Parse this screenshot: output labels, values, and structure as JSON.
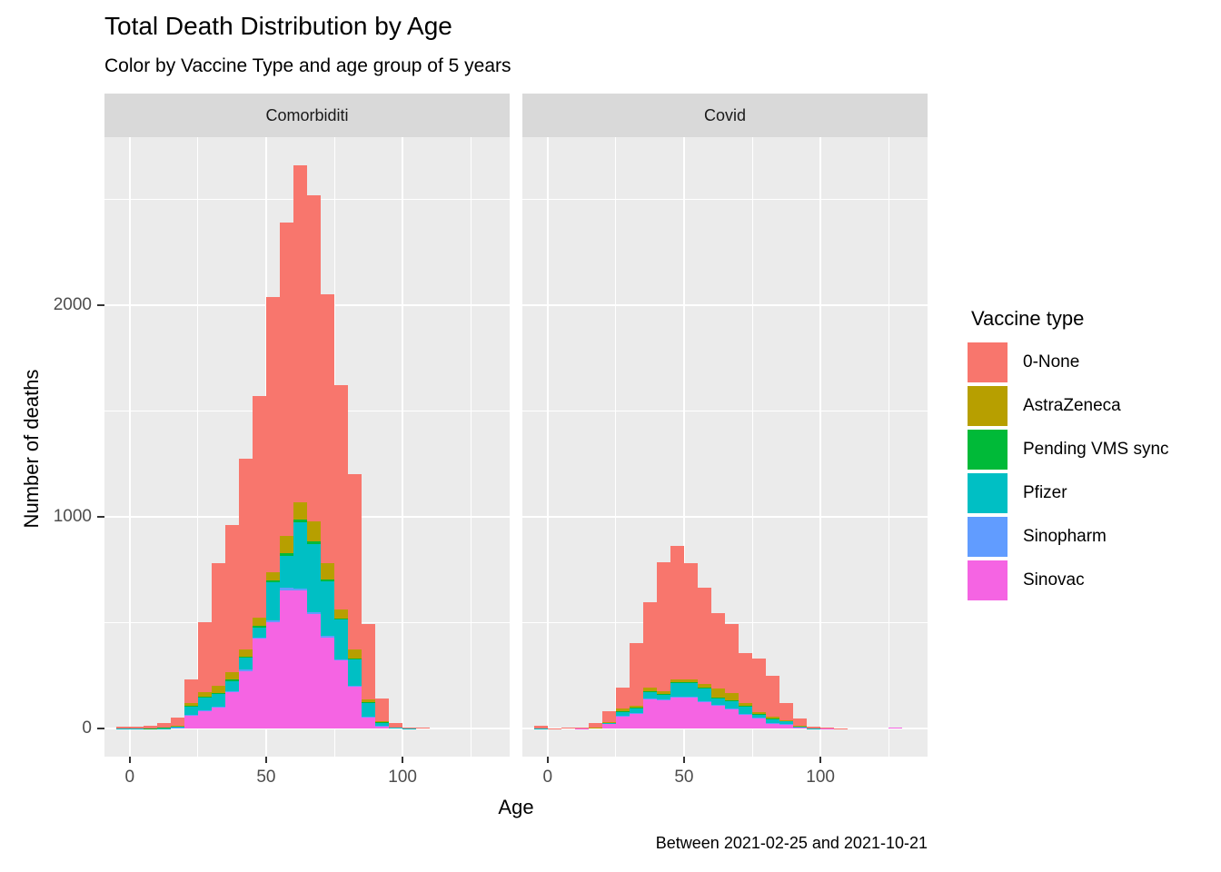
{
  "title": "Total Death Distribution by Age",
  "subtitle": "Color by Vaccine Type and age group of 5 years",
  "x_axis_title": "Age",
  "y_axis_title": "Number of deaths",
  "caption": "Between 2021-02-25 and 2021-10-21",
  "legend": {
    "title": "Vaccine type"
  },
  "chart_data": {
    "type": "bar",
    "stacked": true,
    "binwidth": 5,
    "title": "Total Death Distribution by Age",
    "subtitle": "Color by Vaccine Type and age group of 5 years",
    "xlabel": "Age",
    "ylabel": "Number of deaths",
    "legend_position": "right",
    "panel_background": "#EBEBEB",
    "strip_background": "#D9D9D9",
    "x_range": [
      -9.25,
      139.25
    ],
    "y_range": [
      -133,
      2793
    ],
    "x_ticks": [
      {
        "value": 0,
        "label": "0"
      },
      {
        "value": 50,
        "label": "50"
      },
      {
        "value": 100,
        "label": "100"
      }
    ],
    "x_minor": [
      25,
      75,
      125
    ],
    "y_ticks": [
      {
        "value": 0,
        "label": "0"
      },
      {
        "value": 1000,
        "label": "1000"
      },
      {
        "value": 2000,
        "label": "2000"
      }
    ],
    "y_minor": [
      500,
      1500,
      2500
    ],
    "series": [
      {
        "name": "0-None",
        "color": "#F8766D"
      },
      {
        "name": "AstraZeneca",
        "color": "#B79F00"
      },
      {
        "name": "Pending VMS sync",
        "color": "#00BA38"
      },
      {
        "name": "Pfizer",
        "color": "#00BFC4"
      },
      {
        "name": "Sinopharm",
        "color": "#619CFF"
      },
      {
        "name": "Sinovac",
        "color": "#F564E3"
      }
    ],
    "facets": [
      {
        "label": "Comorbiditi",
        "bin_starts": [
          -5,
          0,
          5,
          10,
          15,
          20,
          25,
          30,
          35,
          40,
          45,
          50,
          55,
          60,
          65,
          70,
          75,
          80,
          85,
          90,
          95,
          100,
          105
        ],
        "values": {
          "0-None": [
            7,
            6,
            11,
            21,
            40,
            112,
            330,
            580,
            694,
            900,
            1048,
            1300,
            1480,
            1590,
            1540,
            1270,
            1058,
            828,
            357,
            106,
            19,
            5,
            3
          ],
          "AstraZeneca": [
            0,
            0,
            0,
            0,
            2,
            15,
            20,
            34,
            36,
            34,
            38,
            42,
            83,
            82,
            98,
            78,
            42,
            43,
            13,
            2,
            0,
            0,
            0
          ],
          "Pending VMS sync": [
            0,
            0,
            1,
            1,
            2,
            3,
            3,
            4,
            5,
            5,
            6,
            8,
            10,
            12,
            10,
            8,
            6,
            5,
            3,
            1,
            0,
            0,
            0
          ],
          "Pfizer": [
            1,
            1,
            1,
            1,
            4,
            39,
            60,
            57,
            50,
            58,
            48,
            180,
            153,
            315,
            321,
            258,
            187,
            124,
            65,
            17,
            3,
            1,
            0
          ],
          "Sinopharm": [
            0,
            0,
            0,
            0,
            1,
            2,
            4,
            5,
            5,
            8,
            6,
            10,
            10,
            11,
            9,
            6,
            5,
            4,
            2,
            1,
            0,
            0,
            0
          ],
          "Sinovac": [
            0,
            1,
            0,
            1,
            4,
            62,
            83,
            100,
            170,
            270,
            424,
            500,
            654,
            650,
            542,
            430,
            322,
            196,
            55,
            13,
            3,
            0,
            0
          ]
        }
      },
      {
        "label": "Covid",
        "bin_starts": [
          -5,
          0,
          5,
          10,
          15,
          20,
          25,
          30,
          35,
          40,
          45,
          50,
          55,
          60,
          65,
          70,
          75,
          80,
          85,
          90,
          95,
          100,
          105,
          125
        ],
        "values": {
          "0-None": [
            11,
            2,
            3,
            3,
            19,
            50,
            98,
            297,
            401,
            609,
            630,
            548,
            456,
            357,
            326,
            239,
            251,
            194,
            85,
            36,
            8,
            2,
            2,
            0
          ],
          "AstraZeneca": [
            0,
            0,
            0,
            0,
            1,
            2,
            14,
            11,
            17,
            12,
            13,
            14,
            19,
            42,
            32,
            13,
            11,
            8,
            2,
            1,
            0,
            0,
            0,
            0
          ],
          "Pending VMS sync": [
            0,
            0,
            0,
            0,
            0,
            0,
            1,
            1,
            2,
            2,
            3,
            2,
            2,
            2,
            2,
            1,
            1,
            1,
            0,
            0,
            0,
            0,
            0,
            0
          ],
          "Pfizer": [
            1,
            0,
            0,
            0,
            2,
            8,
            21,
            24,
            33,
            21,
            68,
            66,
            60,
            34,
            36,
            37,
            14,
            21,
            15,
            6,
            1,
            0,
            0,
            0
          ],
          "Sinopharm": [
            0,
            0,
            0,
            0,
            0,
            0,
            1,
            2,
            3,
            3,
            4,
            3,
            3,
            2,
            2,
            2,
            1,
            1,
            1,
            0,
            0,
            0,
            0,
            0
          ],
          "Sinovac": [
            0,
            0,
            0,
            1,
            3,
            20,
            57,
            70,
            140,
            136,
            145,
            146,
            127,
            109,
            94,
            66,
            52,
            23,
            19,
            4,
            1,
            1,
            0,
            4
          ]
        }
      }
    ]
  }
}
